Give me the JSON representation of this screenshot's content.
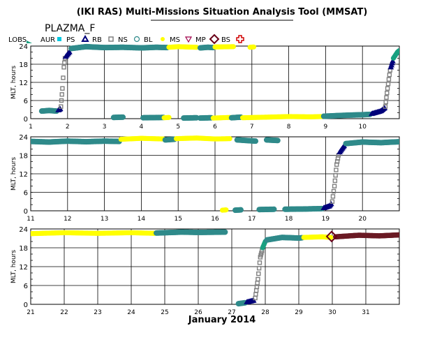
{
  "header": {
    "title": "(IKI RAS) Multi-Missions Situation Analysis Tool (MMSAT)",
    "subtitle": "PLAZMA_F"
  },
  "legend": {
    "lead": "LOBS",
    "items": [
      {
        "label": "AUR",
        "marker": "square",
        "color": "#00c8e0"
      },
      {
        "label": "PS",
        "marker": "triangle",
        "color": "#00007a"
      },
      {
        "label": "RB",
        "marker": "hollow-square",
        "color": "#808080"
      },
      {
        "label": "NS",
        "marker": "hollow-circle",
        "color": "#2f8a8a"
      },
      {
        "label": "BL",
        "marker": "dot",
        "color": "#ffff00"
      },
      {
        "label": "MS",
        "marker": "hollow-triangle-down",
        "color": "#a0004a"
      },
      {
        "label": "MP",
        "marker": "hollow-diamond",
        "color": "#6a0018"
      },
      {
        "label": "BS",
        "marker": "hollow-cross",
        "color": "#d00000"
      }
    ]
  },
  "colors": {
    "ps": "#00007a",
    "rb": "#808080",
    "ns": "#2f8a8a",
    "bl": "#ffff00",
    "lobs": "#18a080",
    "sw": "#6a1a24",
    "mp": "#6a0018"
  },
  "chart_data": {
    "type": "scatter",
    "xlabel": "January 2014",
    "ylabel": "MLT, hours",
    "yticks": [
      0,
      6,
      12,
      18,
      24
    ],
    "ylim": [
      0,
      24
    ],
    "panels": [
      {
        "xlim": [
          1,
          11
        ],
        "xticks": [
          1,
          2,
          3,
          4,
          5,
          6,
          7,
          8,
          9,
          10
        ],
        "segments": [
          {
            "region": "ns",
            "points": [
              [
                1.3,
                2.5
              ],
              [
                1.5,
                2.7
              ],
              [
                1.7,
                2.5
              ]
            ]
          },
          {
            "region": "ps",
            "points": [
              [
                1.75,
                2.8
              ],
              [
                1.8,
                3.2
              ]
            ]
          },
          {
            "region": "rb",
            "points": [
              [
                1.82,
                4
              ],
              [
                1.86,
                10
              ],
              [
                1.9,
                17
              ],
              [
                1.93,
                20
              ]
            ]
          },
          {
            "region": "ps",
            "points": [
              [
                1.95,
                20.5
              ],
              [
                2.05,
                22
              ]
            ]
          },
          {
            "region": "ns",
            "points": [
              [
                2.1,
                23.2
              ],
              [
                2.5,
                23.8
              ],
              [
                3.0,
                23.5
              ],
              [
                3.5,
                23.6
              ],
              [
                4.0,
                23.4
              ],
              [
                4.4,
                23.6
              ],
              [
                4.7,
                23.5
              ]
            ]
          },
          {
            "region": "bl",
            "points": [
              [
                4.75,
                23.6
              ],
              [
                5.0,
                23.8
              ],
              [
                5.5,
                23.6
              ]
            ]
          },
          {
            "region": "ns",
            "points": [
              [
                5.6,
                23.4
              ],
              [
                5.8,
                23.6
              ],
              [
                5.95,
                23.5
              ]
            ]
          },
          {
            "region": "bl",
            "points": [
              [
                6.0,
                23.7
              ],
              [
                6.5,
                23.8
              ]
            ]
          },
          {
            "region": "bl",
            "points": [
              [
                6.95,
                23.6
              ],
              [
                7.05,
                23.7
              ]
            ]
          },
          {
            "region": "ns",
            "points": [
              [
                3.25,
                0.4
              ],
              [
                3.5,
                0.5
              ]
            ]
          },
          {
            "region": "ns",
            "points": [
              [
                4.05,
                0.3
              ],
              [
                4.6,
                0.4
              ]
            ]
          },
          {
            "region": "bl",
            "points": [
              [
                4.62,
                0.3
              ],
              [
                4.75,
                0.4
              ]
            ]
          },
          {
            "region": "ns",
            "points": [
              [
                5.15,
                0.2
              ],
              [
                5.5,
                0.3
              ]
            ]
          },
          {
            "region": "ns",
            "points": [
              [
                5.6,
                0.2
              ],
              [
                5.9,
                0.3
              ]
            ]
          },
          {
            "region": "bl",
            "points": [
              [
                5.95,
                0.2
              ],
              [
                6.4,
                0.4
              ]
            ]
          },
          {
            "region": "ns",
            "points": [
              [
                6.45,
                0.3
              ],
              [
                6.7,
                0.5
              ]
            ]
          },
          {
            "region": "bl",
            "points": [
              [
                6.75,
                0.3
              ],
              [
                7.4,
                0.5
              ],
              [
                8.0,
                0.7
              ],
              [
                8.6,
                0.6
              ],
              [
                8.9,
                0.7
              ]
            ]
          },
          {
            "region": "ns",
            "points": [
              [
                8.95,
                0.8
              ],
              [
                9.5,
                1.1
              ],
              [
                10.0,
                1.3
              ],
              [
                10.2,
                1.4
              ]
            ]
          },
          {
            "region": "ps",
            "points": [
              [
                10.25,
                1.6
              ],
              [
                10.5,
                2.5
              ],
              [
                10.6,
                3.5
              ]
            ]
          },
          {
            "region": "rb",
            "points": [
              [
                10.62,
                4
              ],
              [
                10.68,
                10
              ],
              [
                10.75,
                16
              ]
            ]
          },
          {
            "region": "ps",
            "points": [
              [
                10.77,
                17
              ],
              [
                10.82,
                19
              ]
            ]
          },
          {
            "region": "lobs",
            "points": [
              [
                10.84,
                20
              ],
              [
                10.95,
                22
              ],
              [
                11.0,
                22.5
              ]
            ]
          }
        ]
      },
      {
        "xlim": [
          11,
          21
        ],
        "xticks": [
          11,
          12,
          13,
          14,
          15,
          16,
          17,
          18,
          19,
          20
        ],
        "segments": [
          {
            "region": "ns",
            "points": [
              [
                11.0,
                22.5
              ],
              [
                11.5,
                22.3
              ],
              [
                12.0,
                22.6
              ],
              [
                12.5,
                22.4
              ],
              [
                13.0,
                22.6
              ],
              [
                13.4,
                22.5
              ]
            ]
          },
          {
            "region": "bl",
            "points": [
              [
                13.45,
                23.2
              ],
              [
                14.0,
                23.5
              ],
              [
                14.6,
                23.3
              ]
            ]
          },
          {
            "region": "ns",
            "points": [
              [
                14.65,
                23.0
              ],
              [
                14.9,
                23.2
              ]
            ]
          },
          {
            "region": "bl",
            "points": [
              [
                14.95,
                23.4
              ],
              [
                15.5,
                23.6
              ],
              [
                16.0,
                23.3
              ],
              [
                16.4,
                23.4
              ]
            ]
          },
          {
            "region": "ns",
            "points": [
              [
                16.6,
                23.0
              ],
              [
                17.1,
                22.6
              ]
            ]
          },
          {
            "region": "ns",
            "points": [
              [
                17.4,
                23.0
              ],
              [
                17.7,
                22.8
              ]
            ]
          },
          {
            "region": "bl",
            "points": [
              [
                16.2,
                0.2
              ],
              [
                16.3,
                0.3
              ]
            ]
          },
          {
            "region": "ns",
            "points": [
              [
                16.55,
                0.2
              ],
              [
                16.7,
                0.3
              ]
            ]
          },
          {
            "region": "ns",
            "points": [
              [
                17.2,
                0.4
              ],
              [
                17.6,
                0.5
              ]
            ]
          },
          {
            "region": "ns",
            "points": [
              [
                17.9,
                0.5
              ],
              [
                18.5,
                0.6
              ],
              [
                18.9,
                0.7
              ]
            ]
          },
          {
            "region": "ps",
            "points": [
              [
                18.95,
                0.9
              ],
              [
                19.1,
                1.5
              ],
              [
                19.15,
                2.2
              ]
            ]
          },
          {
            "region": "rb",
            "points": [
              [
                19.18,
                3
              ],
              [
                19.24,
                8
              ],
              [
                19.3,
                15
              ],
              [
                19.35,
                18
              ]
            ]
          },
          {
            "region": "ps",
            "points": [
              [
                19.38,
                19
              ],
              [
                19.5,
                21
              ]
            ]
          },
          {
            "region": "ns",
            "points": [
              [
                19.55,
                21.8
              ],
              [
                20.0,
                22.3
              ],
              [
                20.5,
                22.1
              ],
              [
                21.0,
                22.4
              ]
            ]
          }
        ]
      },
      {
        "xlim": [
          21,
          32
        ],
        "xticks": [
          21,
          22,
          23,
          24,
          25,
          26,
          27,
          28,
          29,
          30,
          31
        ],
        "segments": [
          {
            "region": "bl",
            "points": [
              [
                21.0,
                22.5
              ],
              [
                22.0,
                22.8
              ],
              [
                23.0,
                22.6
              ],
              [
                24.0,
                22.8
              ],
              [
                24.7,
                22.6
              ]
            ]
          },
          {
            "region": "ns",
            "points": [
              [
                24.75,
                22.7
              ],
              [
                25.5,
                23.0
              ],
              [
                26.0,
                22.9
              ],
              [
                26.8,
                23.0
              ]
            ]
          },
          {
            "region": "ns",
            "points": [
              [
                27.2,
                0.2
              ],
              [
                27.4,
                0.5
              ]
            ]
          },
          {
            "region": "ps",
            "points": [
              [
                27.45,
                0.7
              ],
              [
                27.65,
                1.2
              ]
            ]
          },
          {
            "region": "rb",
            "points": [
              [
                27.7,
                2
              ],
              [
                27.78,
                8
              ],
              [
                27.85,
                15
              ],
              [
                27.9,
                17
              ]
            ]
          },
          {
            "region": "lobs",
            "points": [
              [
                27.92,
                18
              ],
              [
                28.0,
                20
              ]
            ]
          },
          {
            "region": "ns",
            "points": [
              [
                28.05,
                20.5
              ],
              [
                28.5,
                21.3
              ],
              [
                29.0,
                21.1
              ],
              [
                29.1,
                21.2
              ]
            ]
          },
          {
            "region": "bl",
            "points": [
              [
                29.15,
                21.3
              ],
              [
                29.7,
                21.5
              ],
              [
                29.95,
                21.3
              ]
            ]
          },
          {
            "region": "sw",
            "points": [
              [
                30.1,
                21.5
              ],
              [
                30.8,
                22.0
              ],
              [
                31.4,
                21.8
              ],
              [
                32.0,
                22.1
              ]
            ]
          }
        ],
        "crossings": [
          {
            "x": 29.98,
            "y": 21.6,
            "type": "MP"
          }
        ]
      }
    ]
  }
}
